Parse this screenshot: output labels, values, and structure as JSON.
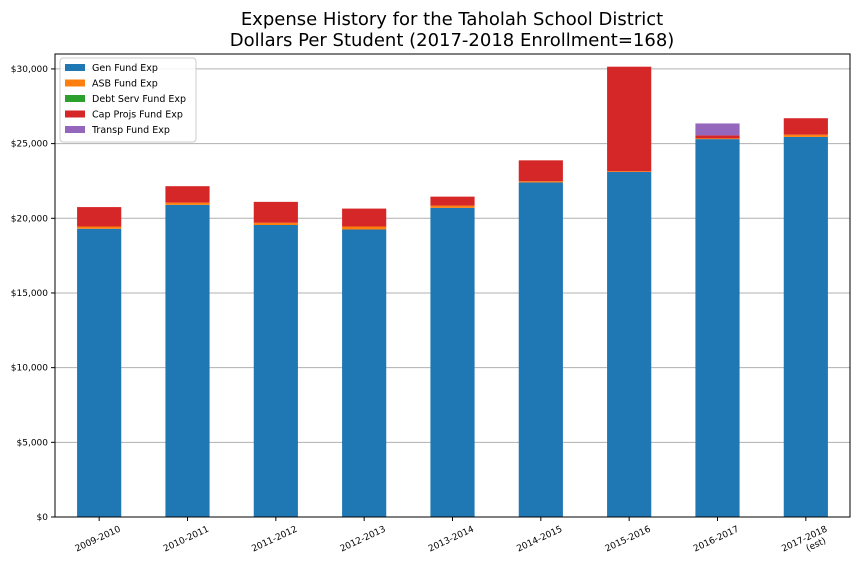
{
  "chart_data": {
    "type": "bar",
    "stacked": true,
    "title": "Expense History for the Taholah School District",
    "subtitle": "Dollars Per Student (2017-2018 Enrollment=168)",
    "xlabel": "",
    "ylabel": "",
    "ylim": [
      0,
      31000
    ],
    "yticks": [
      0,
      5000,
      10000,
      15000,
      20000,
      25000,
      30000
    ],
    "ytick_labels": [
      "$0",
      "$5,000",
      "$10,000",
      "$15,000",
      "$20,000",
      "$25,000",
      "$30,000"
    ],
    "grid": "horizontal",
    "legend_position": "top-left",
    "categories": [
      [
        "2009-2010"
      ],
      [
        "2010-2011"
      ],
      [
        "2011-2012"
      ],
      [
        "2012-2013"
      ],
      [
        "2013-2014"
      ],
      [
        "2014-2015"
      ],
      [
        "2015-2016"
      ],
      [
        "2016-2017"
      ],
      [
        "2017-2018",
        "(est)"
      ]
    ],
    "series": [
      {
        "name": "Gen Fund Exp",
        "color": "#1f77b4",
        "values": [
          19300,
          20900,
          19550,
          19250,
          20700,
          22400,
          23100,
          25300,
          25450
        ]
      },
      {
        "name": "ASB Fund Exp",
        "color": "#ff7f0e",
        "values": [
          150,
          150,
          150,
          200,
          150,
          80,
          50,
          50,
          150
        ]
      },
      {
        "name": "Debt Serv Fund Exp",
        "color": "#2ca02c",
        "values": [
          0,
          0,
          0,
          0,
          0,
          0,
          0,
          0,
          0
        ]
      },
      {
        "name": "Cap Projs Fund Exp",
        "color": "#d62728",
        "values": [
          1300,
          1100,
          1400,
          1200,
          600,
          1400,
          7000,
          200,
          1100
        ]
      },
      {
        "name": "Transp Fund Exp",
        "color": "#9467bd",
        "values": [
          0,
          0,
          0,
          0,
          0,
          0,
          0,
          800,
          0
        ]
      }
    ]
  }
}
